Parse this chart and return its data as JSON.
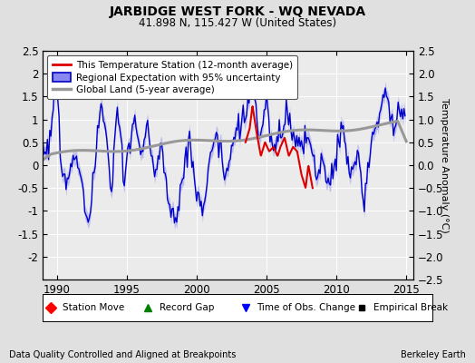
{
  "title": "JARBIDGE WEST FORK - WQ NEVADA",
  "subtitle": "41.898 N, 115.427 W (United States)",
  "xlabel_left": "Data Quality Controlled and Aligned at Breakpoints",
  "xlabel_right": "Berkeley Earth",
  "ylabel": "Temperature Anomaly (°C)",
  "xlim": [
    1989.0,
    2015.5
  ],
  "ylim": [
    -2.5,
    2.5
  ],
  "yticks": [
    -2.5,
    -2,
    -1.5,
    -1,
    -0.5,
    0,
    0.5,
    1,
    1.5,
    2,
    2.5
  ],
  "xticks": [
    1990,
    1995,
    2000,
    2005,
    2010,
    2015
  ],
  "bg_color": "#e0e0e0",
  "plot_bg_color": "#ebebeb",
  "grid_color": "#ffffff",
  "red_line_color": "#dd0000",
  "blue_line_color": "#0000cc",
  "blue_fill_color": "#8888ee",
  "gray_line_color": "#999999",
  "gray_fill_color": "#bbbbbb"
}
